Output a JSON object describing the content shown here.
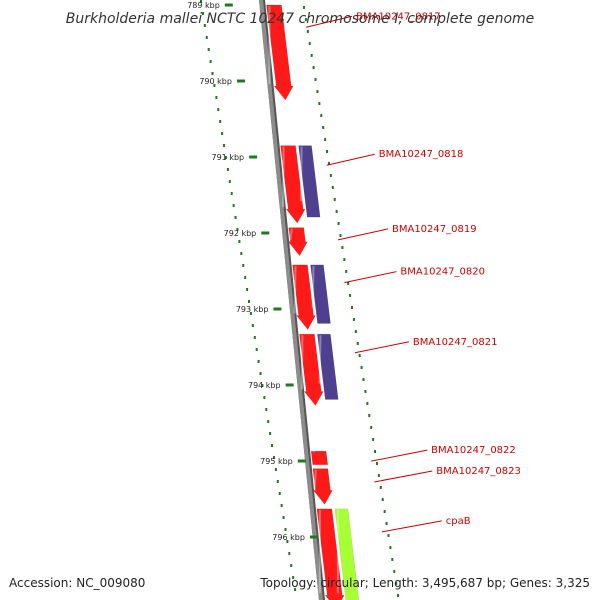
{
  "title": "Burkholderia mallei NCTC 10247 chromosome I, complete genome",
  "footer": {
    "accession": "Accession: NC_009080",
    "summary": "Topology: circular; Length: 3,495,687 bp; Genes: 3,325"
  },
  "colors": {
    "backbone": "#8c8c8c",
    "forward_gene": "#ff1a1a",
    "reverse_gene": "#4f3f8f",
    "highlight_gene": "#a8ff33",
    "label": "#cc0000",
    "tick": "#1f7a1f"
  },
  "ruler": {
    "unit": "kbp",
    "ticks": [
      {
        "kbp": 789,
        "label": "789 kbp"
      },
      {
        "kbp": 790,
        "label": "790 kbp"
      },
      {
        "kbp": 791,
        "label": "791 kbp"
      },
      {
        "kbp": 792,
        "label": "792 kbp"
      },
      {
        "kbp": 793,
        "label": "793 kbp"
      },
      {
        "kbp": 794,
        "label": "794 kbp"
      },
      {
        "kbp": 795,
        "label": "795 kbp"
      },
      {
        "kbp": 796,
        "label": "796 kbp"
      }
    ]
  },
  "genes": [
    {
      "label": "BMA10247_0817",
      "start_kbp": 789.0,
      "end_kbp": 790.25,
      "strand": "forward",
      "color_key": "forward_gene",
      "has_reverse": false
    },
    {
      "label": "BMA10247_0818",
      "start_kbp": 790.85,
      "end_kbp": 791.87,
      "strand": "forward",
      "color_key": "forward_gene",
      "has_reverse": true
    },
    {
      "label": "BMA10247_0819",
      "start_kbp": 791.93,
      "end_kbp": 792.3,
      "strand": "forward",
      "color_key": "forward_gene",
      "has_reverse": false
    },
    {
      "label": "BMA10247_0820",
      "start_kbp": 792.42,
      "end_kbp": 793.27,
      "strand": "forward",
      "color_key": "forward_gene",
      "has_reverse": true
    },
    {
      "label": "BMA10247_0821",
      "start_kbp": 793.33,
      "end_kbp": 794.27,
      "strand": "forward",
      "color_key": "forward_gene",
      "has_reverse": true
    },
    {
      "label": "BMA10247_0822",
      "start_kbp": 794.87,
      "end_kbp": 795.05,
      "strand": "forward",
      "color_key": "forward_gene",
      "has_reverse": false
    },
    {
      "label": "BMA10247_0823",
      "start_kbp": 795.1,
      "end_kbp": 795.57,
      "strand": "forward",
      "color_key": "forward_gene",
      "has_reverse": false
    },
    {
      "label": "cpaB",
      "start_kbp": 795.63,
      "end_kbp": 796.95,
      "strand": "forward",
      "color_key": "forward_gene",
      "has_reverse": false,
      "companion_color_key": "highlight_gene"
    }
  ]
}
